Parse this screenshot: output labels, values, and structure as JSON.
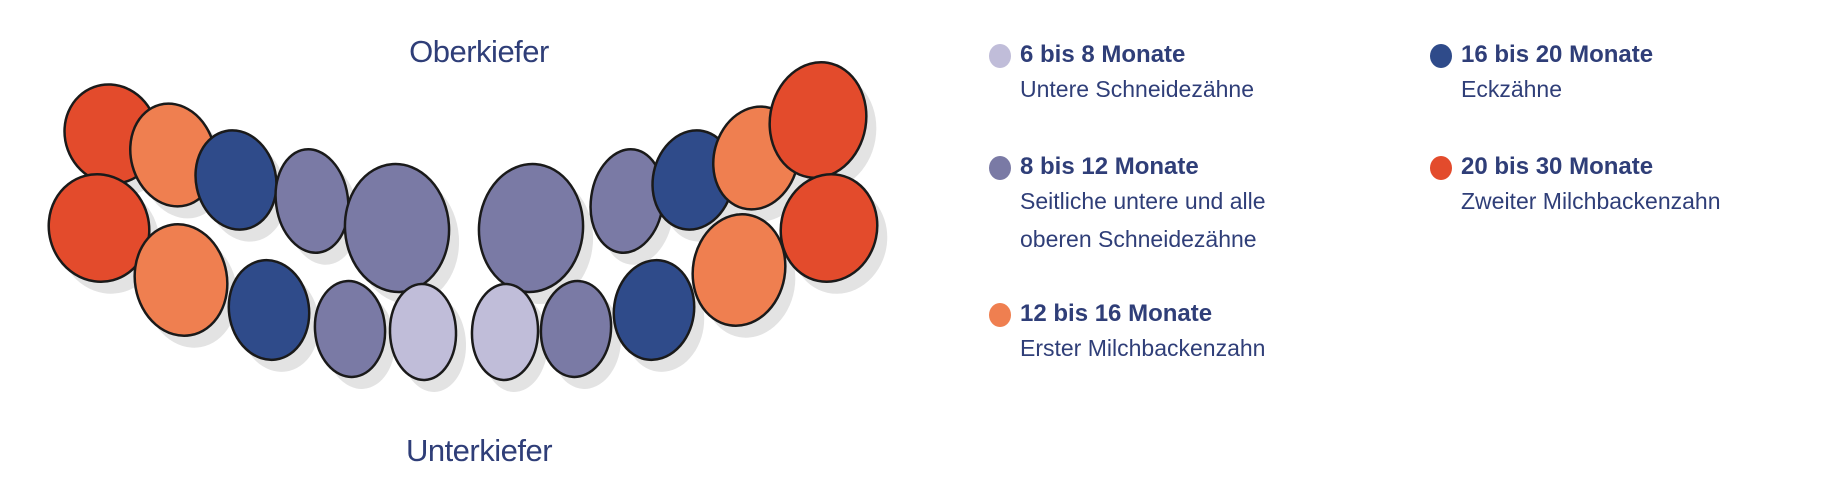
{
  "jaw_labels": {
    "upper": "Oberkiefer",
    "lower": "Unterkiefer"
  },
  "colors": {
    "text": "#2f3e78",
    "outline": "#1a1a1a",
    "shadow": "#e3e3e3"
  },
  "legend": [
    {
      "color": "#c0bdd9",
      "title": "6 bis 8 Monate",
      "desc": [
        "Untere Schneidezähne"
      ]
    },
    {
      "color": "#7a7aa5",
      "title": "8 bis 12 Monate",
      "desc": [
        "Seitliche untere und alle",
        "oberen Schneidezähne"
      ]
    },
    {
      "color": "#ef7f50",
      "title": "12 bis 16 Monate",
      "desc": [
        "Erster Milchbackenzahn"
      ]
    },
    {
      "color": "#2f4b8a",
      "title": "16 bis 20 Monate",
      "desc": [
        "Eckzähne"
      ]
    },
    {
      "color": "#e34b2c",
      "title": "20 bis 30 Monate",
      "desc": [
        "Zweiter Milchbackenzahn"
      ]
    }
  ],
  "teeth": {
    "upper": [
      4,
      2,
      3,
      1,
      1,
      1,
      1,
      3,
      2,
      4
    ],
    "lower": [
      4,
      2,
      3,
      1,
      0,
      0,
      1,
      3,
      2,
      4
    ]
  }
}
